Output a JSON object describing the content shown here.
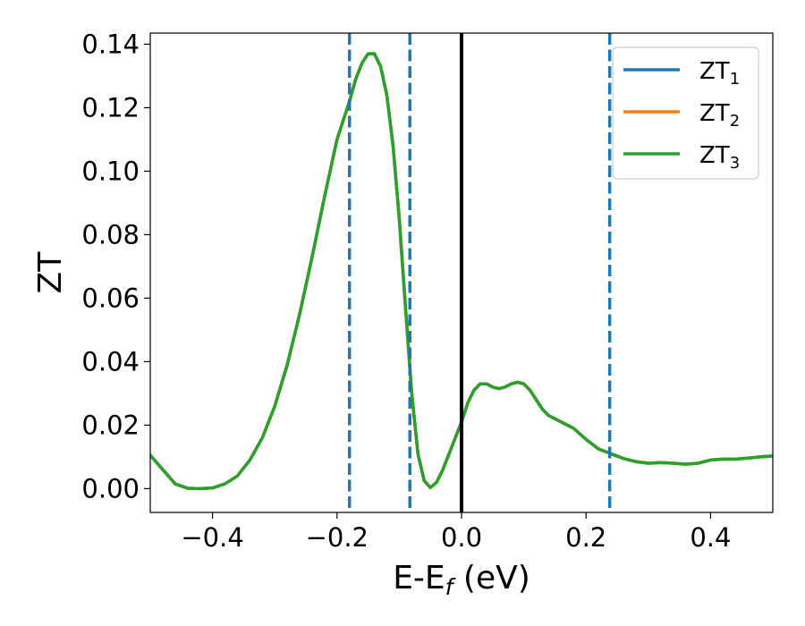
{
  "chart_data": {
    "type": "line",
    "xlabel": {
      "main": "E-E",
      "sub": "f",
      "suffix": " (eV)"
    },
    "ylabel": "ZT",
    "xlim": [
      -0.5,
      0.5
    ],
    "ylim": [
      -0.0075,
      0.1435
    ],
    "x_ticks": [
      -0.4,
      -0.2,
      0.0,
      0.2,
      0.4
    ],
    "x_tick_labels": [
      "−0.4",
      "−0.2",
      "0.0",
      "0.2",
      "0.4"
    ],
    "y_ticks": [
      0.0,
      0.02,
      0.04,
      0.06,
      0.08,
      0.1,
      0.12,
      0.14
    ],
    "y_tick_labels": [
      "0.00",
      "0.02",
      "0.04",
      "0.06",
      "0.08",
      "0.10",
      "0.12",
      "0.14"
    ],
    "grid": false,
    "legend_position": "top-right",
    "x": [
      -0.5,
      -0.48,
      -0.46,
      -0.44,
      -0.42,
      -0.4,
      -0.38,
      -0.36,
      -0.34,
      -0.32,
      -0.3,
      -0.28,
      -0.26,
      -0.24,
      -0.22,
      -0.2,
      -0.18,
      -0.17,
      -0.16,
      -0.15,
      -0.14,
      -0.13,
      -0.12,
      -0.11,
      -0.1,
      -0.09,
      -0.08,
      -0.07,
      -0.06,
      -0.05,
      -0.04,
      -0.03,
      -0.02,
      -0.01,
      0.0,
      0.01,
      0.02,
      0.03,
      0.04,
      0.05,
      0.06,
      0.07,
      0.08,
      0.09,
      0.1,
      0.11,
      0.12,
      0.13,
      0.14,
      0.16,
      0.18,
      0.2,
      0.22,
      0.24,
      0.26,
      0.28,
      0.3,
      0.32,
      0.34,
      0.36,
      0.38,
      0.4,
      0.42,
      0.44,
      0.46,
      0.48,
      0.5
    ],
    "series": [
      {
        "name": "ZT",
        "sub": "1",
        "color": "#1f77b4",
        "values": [
          0.0105,
          0.006,
          0.0015,
          0.0001,
          0.0,
          0.0002,
          0.0015,
          0.004,
          0.009,
          0.016,
          0.026,
          0.039,
          0.055,
          0.073,
          0.092,
          0.11,
          0.122,
          0.129,
          0.134,
          0.137,
          0.137,
          0.133,
          0.124,
          0.108,
          0.085,
          0.057,
          0.03,
          0.011,
          0.0025,
          0.0003,
          0.002,
          0.006,
          0.011,
          0.016,
          0.021,
          0.027,
          0.031,
          0.033,
          0.033,
          0.032,
          0.0315,
          0.032,
          0.033,
          0.0335,
          0.033,
          0.031,
          0.028,
          0.025,
          0.023,
          0.021,
          0.019,
          0.0155,
          0.0125,
          0.011,
          0.0095,
          0.0085,
          0.008,
          0.0082,
          0.008,
          0.0077,
          0.008,
          0.009,
          0.0093,
          0.0093,
          0.0096,
          0.01,
          0.0103
        ]
      },
      {
        "name": "ZT",
        "sub": "2",
        "color": "#ff7f0e",
        "values": [
          0.0105,
          0.006,
          0.0015,
          0.0001,
          0.0,
          0.0002,
          0.0015,
          0.004,
          0.009,
          0.016,
          0.026,
          0.039,
          0.055,
          0.073,
          0.092,
          0.11,
          0.122,
          0.129,
          0.134,
          0.137,
          0.137,
          0.133,
          0.124,
          0.108,
          0.085,
          0.057,
          0.03,
          0.011,
          0.0025,
          0.0003,
          0.002,
          0.006,
          0.011,
          0.016,
          0.021,
          0.027,
          0.031,
          0.033,
          0.033,
          0.032,
          0.0315,
          0.032,
          0.033,
          0.0335,
          0.033,
          0.031,
          0.028,
          0.025,
          0.023,
          0.021,
          0.019,
          0.0155,
          0.0125,
          0.011,
          0.0095,
          0.0085,
          0.008,
          0.0082,
          0.008,
          0.0077,
          0.008,
          0.009,
          0.0093,
          0.0093,
          0.0096,
          0.01,
          0.0103
        ]
      },
      {
        "name": "ZT",
        "sub": "3",
        "color": "#2ca02c",
        "values": [
          0.0105,
          0.006,
          0.0015,
          0.0001,
          0.0,
          0.0002,
          0.0015,
          0.004,
          0.009,
          0.016,
          0.026,
          0.039,
          0.055,
          0.073,
          0.092,
          0.11,
          0.122,
          0.129,
          0.134,
          0.137,
          0.137,
          0.133,
          0.124,
          0.108,
          0.085,
          0.057,
          0.03,
          0.011,
          0.0025,
          0.0003,
          0.002,
          0.006,
          0.011,
          0.016,
          0.021,
          0.027,
          0.031,
          0.033,
          0.033,
          0.032,
          0.0315,
          0.032,
          0.033,
          0.0335,
          0.033,
          0.031,
          0.028,
          0.025,
          0.023,
          0.021,
          0.019,
          0.0155,
          0.0125,
          0.011,
          0.0095,
          0.0085,
          0.008,
          0.0082,
          0.008,
          0.0077,
          0.008,
          0.009,
          0.0093,
          0.0093,
          0.0096,
          0.01,
          0.0103
        ]
      }
    ],
    "vlines": [
      {
        "x": -0.18,
        "style": "dashed",
        "color": "#1f77b4"
      },
      {
        "x": -0.083,
        "style": "dashed",
        "color": "#1f77b4"
      },
      {
        "x": 0.238,
        "style": "dashed",
        "color": "#1f77b4"
      },
      {
        "x": 0.0,
        "style": "solid",
        "color": "#000000"
      }
    ]
  }
}
